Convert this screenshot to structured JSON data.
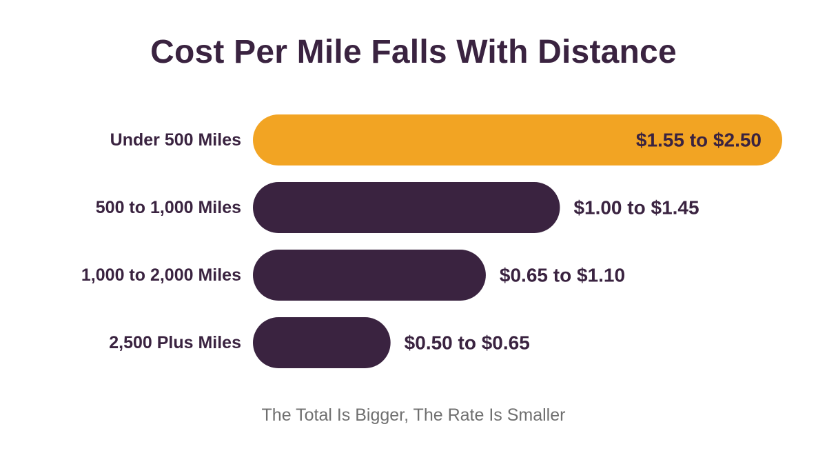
{
  "chart_data": {
    "type": "bar",
    "orientation": "horizontal",
    "title": "Cost Per Mile Falls With Distance",
    "subtitle": "The Total Is Bigger, The Rate Is Smaller",
    "xlabel": "",
    "ylabel": "",
    "grid": false,
    "unit": "USD per mile",
    "categories": [
      "Under 500 Miles",
      "500 to 1,000 Miles",
      "1,000 to 2,000 Miles",
      "2,500 Plus Miles"
    ],
    "ranges": [
      [
        1.55,
        2.5
      ],
      [
        1.0,
        1.45
      ],
      [
        0.65,
        1.1
      ],
      [
        0.5,
        0.65
      ]
    ],
    "value_labels": [
      "$1.55 to $2.50",
      "$1.00 to $1.45",
      "$0.65 to $1.10",
      "$0.50 to $0.65"
    ],
    "bar_extent_values": [
      2.5,
      1.45,
      1.1,
      0.65
    ],
    "xlim": [
      0,
      2.5
    ],
    "colors": {
      "highlight": "#F2A423",
      "default": "#3A2340",
      "label": "#3A2340",
      "caption": "#6F6F6F"
    },
    "highlight_index": 0
  }
}
